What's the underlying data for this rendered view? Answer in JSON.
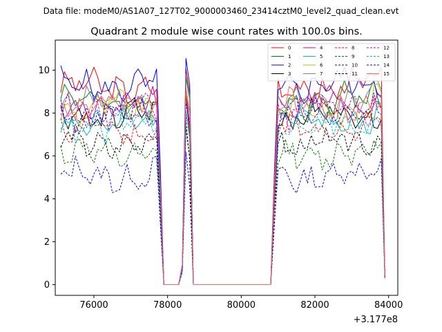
{
  "chart_data": {
    "type": "line",
    "suptitle": "Data file: modeM0/AS1A07_127T02_9000003460_23414cztM0_level2_quad_clean.evt",
    "title": "Quadrant 2 module wise count rates with 100.0s bins.",
    "xlabel": "",
    "ylabel": "",
    "x_offset_label": "+3.177e8",
    "xlim": [
      74950,
      84250
    ],
    "ylim": [
      -0.5,
      11.4
    ],
    "x_ticks": [
      76000,
      78000,
      80000,
      82000,
      84000
    ],
    "x_tick_labels": [
      "76000",
      "78000",
      "80000",
      "82000",
      "84000"
    ],
    "y_ticks": [
      0,
      2,
      4,
      6,
      8,
      10
    ],
    "y_tick_labels": [
      "0",
      "2",
      "4",
      "6",
      "8",
      "10"
    ],
    "legend_position": "top-right",
    "series": [
      {
        "name": "0",
        "color": "#ff0000",
        "style": "solid",
        "level": 9.2
      },
      {
        "name": "1",
        "color": "#008000",
        "style": "solid",
        "level": 8.6
      },
      {
        "name": "2",
        "color": "#0000ff",
        "style": "solid",
        "level": 9.3
      },
      {
        "name": "3",
        "color": "#000000",
        "style": "solid",
        "level": 7.9
      },
      {
        "name": "4",
        "color": "#bf00bf",
        "style": "solid",
        "level": 8.4
      },
      {
        "name": "5",
        "color": "#00bfbf",
        "style": "solid",
        "level": 7.6
      },
      {
        "name": "6",
        "color": "#bfbf00",
        "style": "solid",
        "level": 8.2
      },
      {
        "name": "7",
        "color": "#808080",
        "style": "solid",
        "level": 8.5
      },
      {
        "name": "8",
        "color": "#ff0000",
        "style": "dashed",
        "level": 7.2
      },
      {
        "name": "9",
        "color": "#008000",
        "style": "dashed",
        "level": 6.1
      },
      {
        "name": "10",
        "color": "#0000ff",
        "style": "dashed",
        "level": 5.1
      },
      {
        "name": "11",
        "color": "#000000",
        "style": "dashed",
        "level": 6.6
      },
      {
        "name": "12",
        "color": "#bf00bf",
        "style": "dashed",
        "level": 8.1
      },
      {
        "name": "13",
        "color": "#00bfbf",
        "style": "dashed",
        "level": 7.4
      },
      {
        "name": "14",
        "color": "#0000ff",
        "style": "dashed",
        "level": 8.0
      },
      {
        "name": "15",
        "color": "#ff6666",
        "style": "solid",
        "level": 8.3
      }
    ]
  }
}
